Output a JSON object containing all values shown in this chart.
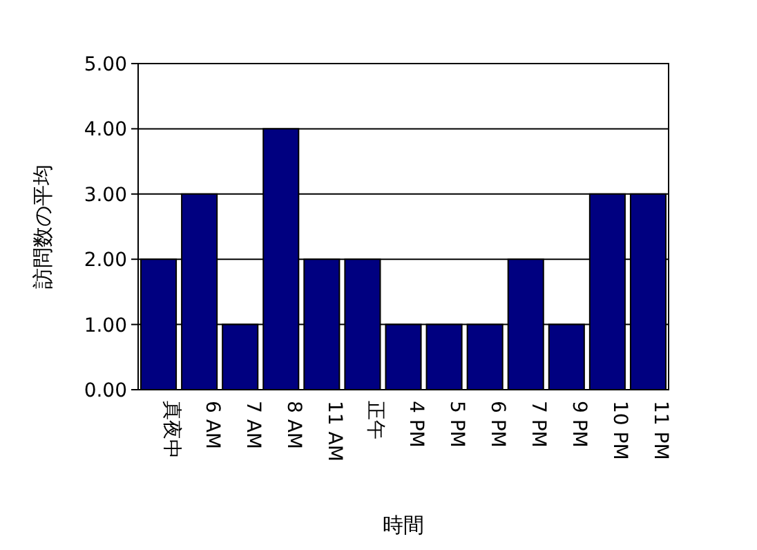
{
  "chart_data": {
    "type": "bar",
    "xlabel": "時間",
    "ylabel": "訪問数の平均",
    "categories": [
      "真夜中",
      "6 AM",
      "7 AM",
      "8 AM",
      "11 AM",
      "正午",
      "4 PM",
      "5 PM",
      "6 PM",
      "7 PM",
      "9 PM",
      "10 PM",
      "11 PM"
    ],
    "values": [
      2,
      3,
      1,
      4,
      2,
      2,
      1,
      1,
      1,
      2,
      1,
      3,
      3
    ],
    "color": "#000080",
    "ylim": [
      0,
      5
    ],
    "yticks": [
      {
        "value": 0,
        "label": "0.00"
      },
      {
        "value": 1,
        "label": "1.00"
      },
      {
        "value": 2,
        "label": "2.00"
      },
      {
        "value": 3,
        "label": "3.00"
      },
      {
        "value": 4,
        "label": "4.00"
      },
      {
        "value": 5,
        "label": "5.00"
      }
    ],
    "grid": true
  }
}
